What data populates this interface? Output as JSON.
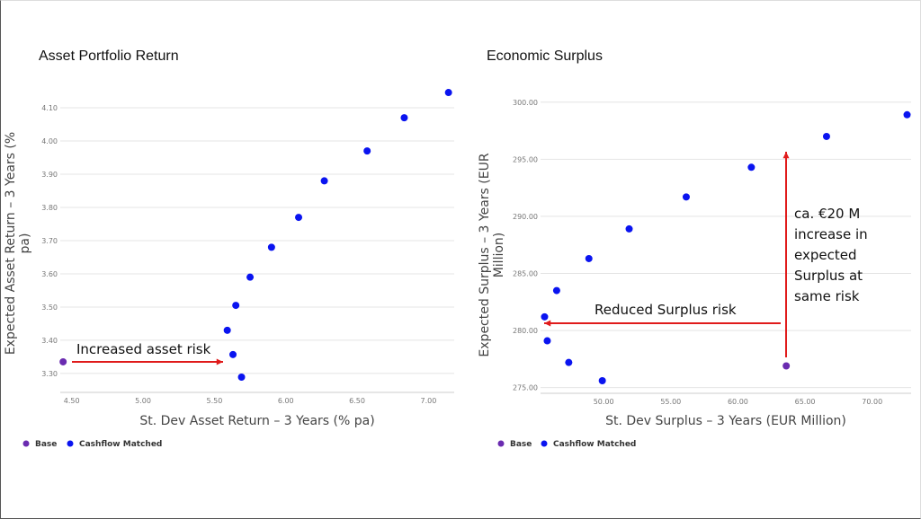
{
  "colors": {
    "base": "#6a2bb0",
    "cashflow_matched": "#0a14f0",
    "arrow": "#e01b1b",
    "grid": "#e4e4e4"
  },
  "chart_data": [
    {
      "type": "scatter",
      "title": "Asset Portfolio Return",
      "xlabel": "St. Dev Asset Return – 3 Years (% pa)",
      "ylabel_lines": [
        "Expected Asset Return – 3 Years (%",
        "pa)"
      ],
      "xticks": [
        "4.50",
        "5.00",
        "5.50",
        "6.00",
        "6.50",
        "7.00"
      ],
      "yticks": [
        "3.30",
        "3.40",
        "3.50",
        "3.60",
        "3.70",
        "3.80",
        "3.90",
        "4.00",
        "4.10"
      ],
      "xlim": [
        4.42,
        7.18
      ],
      "ylim": [
        3.243,
        4.165
      ],
      "grid": true,
      "legend_position": "bottom-left",
      "series": [
        {
          "name": "Base",
          "points": [
            [
              4.44,
              3.335
            ]
          ]
        },
        {
          "name": "Cashflow Matched",
          "points": [
            [
              7.14,
              4.146
            ],
            [
              6.83,
              4.07
            ],
            [
              6.57,
              3.97
            ],
            [
              6.27,
              3.88
            ],
            [
              6.09,
              3.77
            ],
            [
              5.9,
              3.68
            ],
            [
              5.75,
              3.59
            ],
            [
              5.65,
              3.505
            ],
            [
              5.59,
              3.43
            ],
            [
              5.63,
              3.357
            ],
            [
              5.69,
              3.289
            ]
          ]
        }
      ],
      "annotations": [
        {
          "text": "Increased asset risk"
        }
      ]
    },
    {
      "type": "scatter",
      "title": "Economic Surplus",
      "xlabel": "St. Dev Surplus – 3 Years (EUR Million)",
      "ylabel_lines": [
        "Expected Surplus – 3 Years (EUR",
        "Million)"
      ],
      "xticks": [
        "50.00",
        "55.00",
        "60.00",
        "65.00",
        "70.00"
      ],
      "yticks": [
        "275.00",
        "280.00",
        "285.00",
        "290.00",
        "295.00",
        "300.00"
      ],
      "xlim": [
        45.3,
        72.9
      ],
      "ylim": [
        274.5,
        301.4
      ],
      "grid": true,
      "legend_position": "bottom-left",
      "series": [
        {
          "name": "Base",
          "points": [
            [
              63.6,
              276.9
            ]
          ]
        },
        {
          "name": "Cashflow Matched",
          "points": [
            [
              72.6,
              298.9
            ],
            [
              66.6,
              297.0
            ],
            [
              61.0,
              294.3
            ],
            [
              56.15,
              291.7
            ],
            [
              51.9,
              288.9
            ],
            [
              48.9,
              286.3
            ],
            [
              46.5,
              283.5
            ],
            [
              45.6,
              281.2
            ],
            [
              45.8,
              279.1
            ],
            [
              47.4,
              277.2
            ],
            [
              49.9,
              275.6
            ]
          ]
        }
      ],
      "annotations": [
        {
          "text": "Reduced Surplus risk"
        },
        {
          "lines": [
            "ca. €20 M",
            "increase in",
            "expected",
            "Surplus at",
            "same risk"
          ]
        }
      ]
    }
  ]
}
